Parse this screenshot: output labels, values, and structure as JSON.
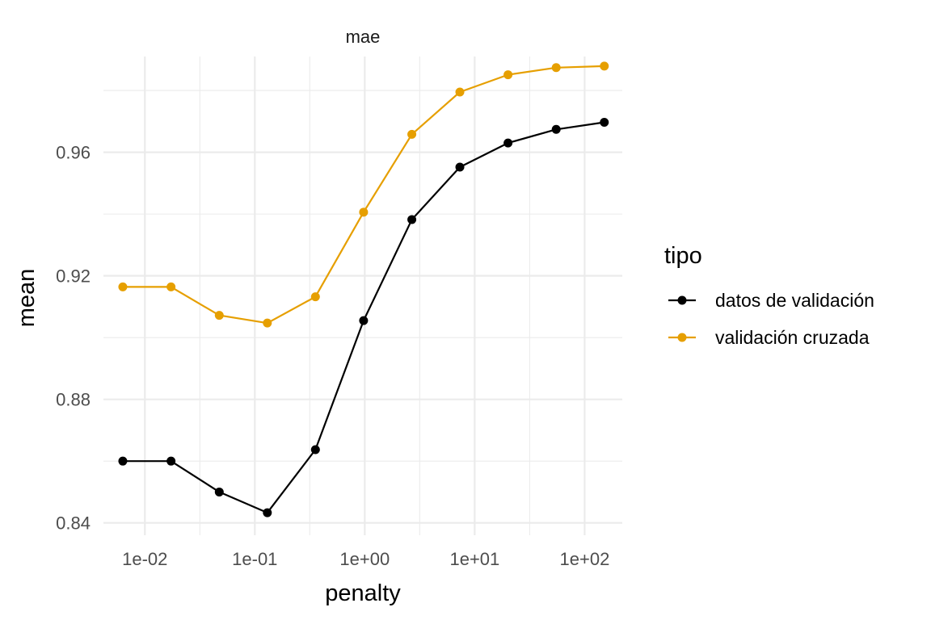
{
  "chart_data": {
    "type": "line",
    "facet_title": "mae",
    "xlabel": "penalty",
    "ylabel": "mean",
    "x_scale": "log10",
    "xlim": [
      0.0042,
      220
    ],
    "ylim": [
      0.836,
      0.991
    ],
    "x_ticks": [
      0.01,
      0.1,
      1,
      10,
      100
    ],
    "x_tick_labels": [
      "1e-02",
      "1e-01",
      "1e+00",
      "1e+01",
      "1e+02"
    ],
    "y_ticks": [
      0.84,
      0.88,
      0.92,
      0.96
    ],
    "y_tick_labels": [
      "0.84",
      "0.88",
      "0.92",
      "0.96"
    ],
    "x": [
      0.0063,
      0.0173,
      0.0475,
      0.13,
      0.356,
      0.976,
      2.68,
      7.33,
      20.1,
      55.1,
      151
    ],
    "series": [
      {
        "name": "datos de validación",
        "color": "#000000",
        "values": [
          0.86,
          0.86,
          0.85,
          0.8433,
          0.8637,
          0.9055,
          0.9382,
          0.9552,
          0.963,
          0.9674,
          0.9697
        ]
      },
      {
        "name": "validación cruzada",
        "color": "#E69F00",
        "values": [
          0.9164,
          0.9164,
          0.9072,
          0.9047,
          0.9132,
          0.9406,
          0.9658,
          0.9795,
          0.9851,
          0.9874,
          0.9879
        ]
      }
    ],
    "legend_title": "tipo",
    "legend_position": "right",
    "grid": true
  }
}
